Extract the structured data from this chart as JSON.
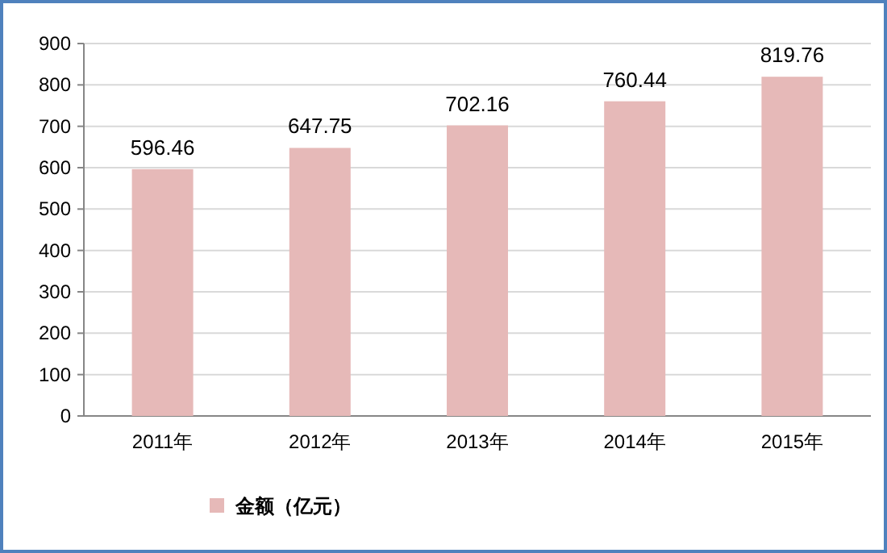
{
  "chart_data": {
    "type": "bar",
    "categories": [
      "2011年",
      "2012年",
      "2013年",
      "2014年",
      "2015年"
    ],
    "series": [
      {
        "name": "金额（亿元）",
        "color": "#e6b9b8",
        "values": [
          596.46,
          647.75,
          702.16,
          760.44,
          819.76
        ]
      }
    ],
    "ylim": [
      0,
      900
    ],
    "yticks": [
      0,
      100,
      200,
      300,
      400,
      500,
      600,
      700,
      800,
      900
    ],
    "grid": "y",
    "legend": "bottom left",
    "data_labels": true
  }
}
